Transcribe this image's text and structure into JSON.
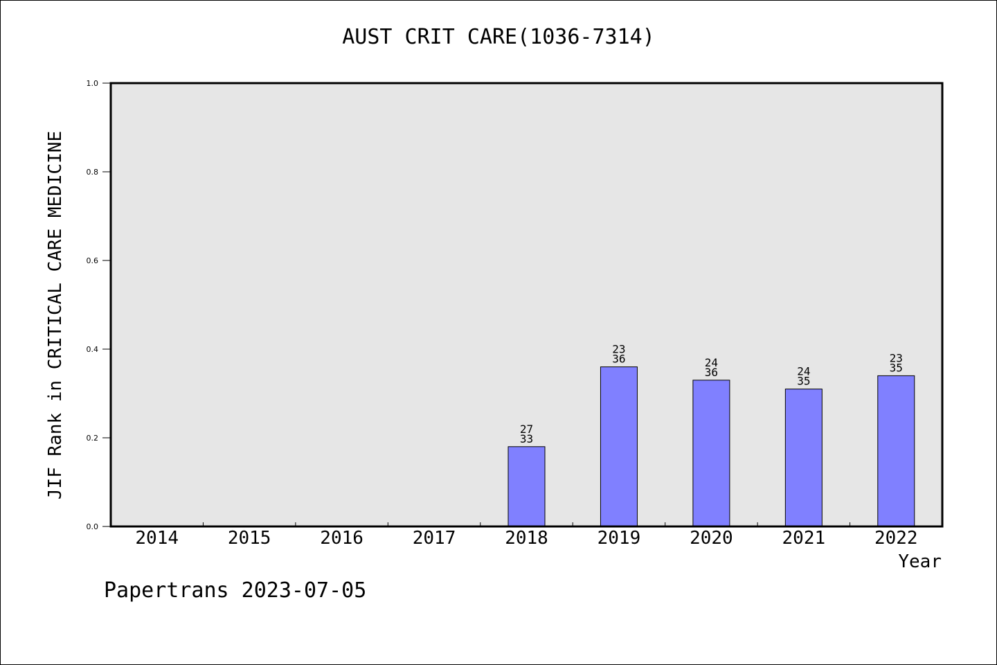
{
  "chart_data": {
    "type": "bar",
    "title": "AUST CRIT CARE(1036-7314)",
    "xlabel": "Year",
    "ylabel": "JIF Rank in CRITICAL CARE MEDICINE",
    "ylim": [
      0,
      1.0
    ],
    "yticks": [
      "0.0",
      "0.2",
      "0.4",
      "0.6",
      "0.8",
      "1.0"
    ],
    "categories": [
      "2014",
      "2015",
      "2016",
      "2017",
      "2018",
      "2019",
      "2020",
      "2021",
      "2022"
    ],
    "values": [
      null,
      null,
      null,
      null,
      0.18,
      0.36,
      0.33,
      0.31,
      0.34
    ],
    "labels": [
      null,
      null,
      null,
      null,
      [
        "27",
        "33"
      ],
      [
        "23",
        "36"
      ],
      [
        "24",
        "36"
      ],
      [
        "24",
        "35"
      ],
      [
        "23",
        "35"
      ]
    ],
    "grid": false,
    "colors": {
      "bar_fill": "#8080ff",
      "plot_background": "#e6e6e6",
      "axis": "#000000"
    }
  },
  "footer": "Papertrans 2023-07-05"
}
